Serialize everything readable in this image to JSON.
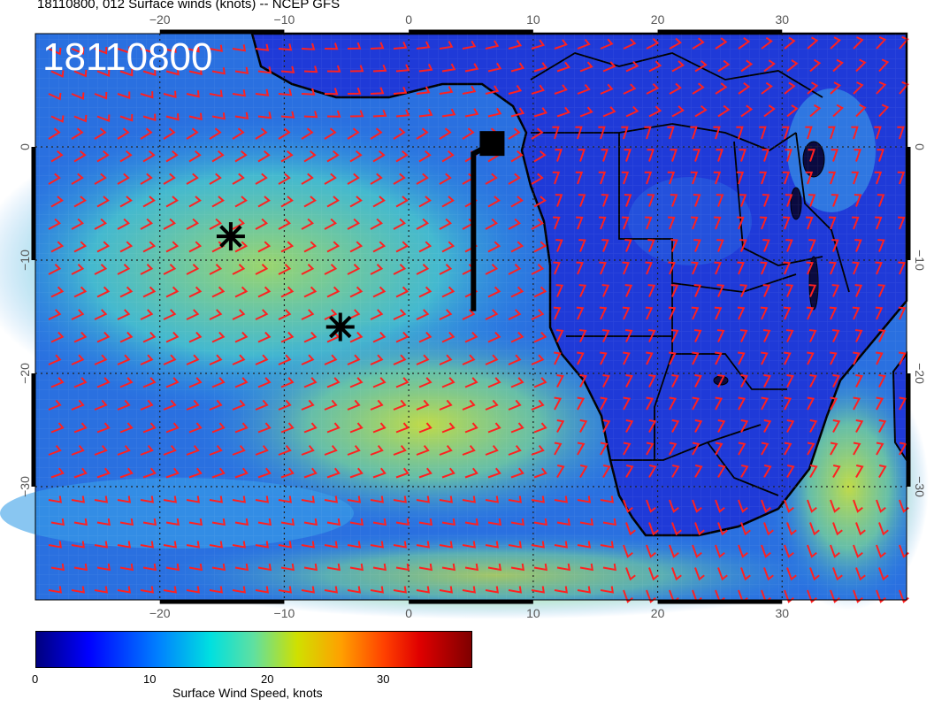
{
  "title": "18110800, 012 Surface winds (knots) -- NCEP GFS",
  "stamp": "18110800",
  "map": {
    "lon_range": [
      -30,
      40
    ],
    "lat_range": [
      -40,
      10
    ],
    "lon_ticks": [
      "−20",
      "−10",
      "0",
      "10",
      "20",
      "30"
    ],
    "lat_ticks": [
      "0",
      "−10",
      "−20",
      "−30"
    ],
    "barb_color": "#ff2020",
    "coast_color": "#000000",
    "markers": [
      {
        "name": "asterisk-marker-1",
        "lon": -14.3,
        "lat": -7.9
      },
      {
        "name": "asterisk-marker-2",
        "lon": -5.5,
        "lat": -15.9
      }
    ],
    "station_square": {
      "lon": 6.7,
      "lat": 0.3
    },
    "track": [
      [
        6.7,
        0.3
      ],
      [
        5.2,
        -0.6
      ],
      [
        5.2,
        -14.5
      ]
    ]
  },
  "colorbar": {
    "title": "Surface Wind Speed, knots",
    "labels": [
      "0",
      "10",
      "20",
      "30"
    ],
    "colors": [
      "#00007f",
      "#0000ff",
      "#0080ff",
      "#00e0e0",
      "#60e0a0",
      "#d0e000",
      "#ffa000",
      "#ff4000",
      "#e00000",
      "#7f0000"
    ]
  }
}
